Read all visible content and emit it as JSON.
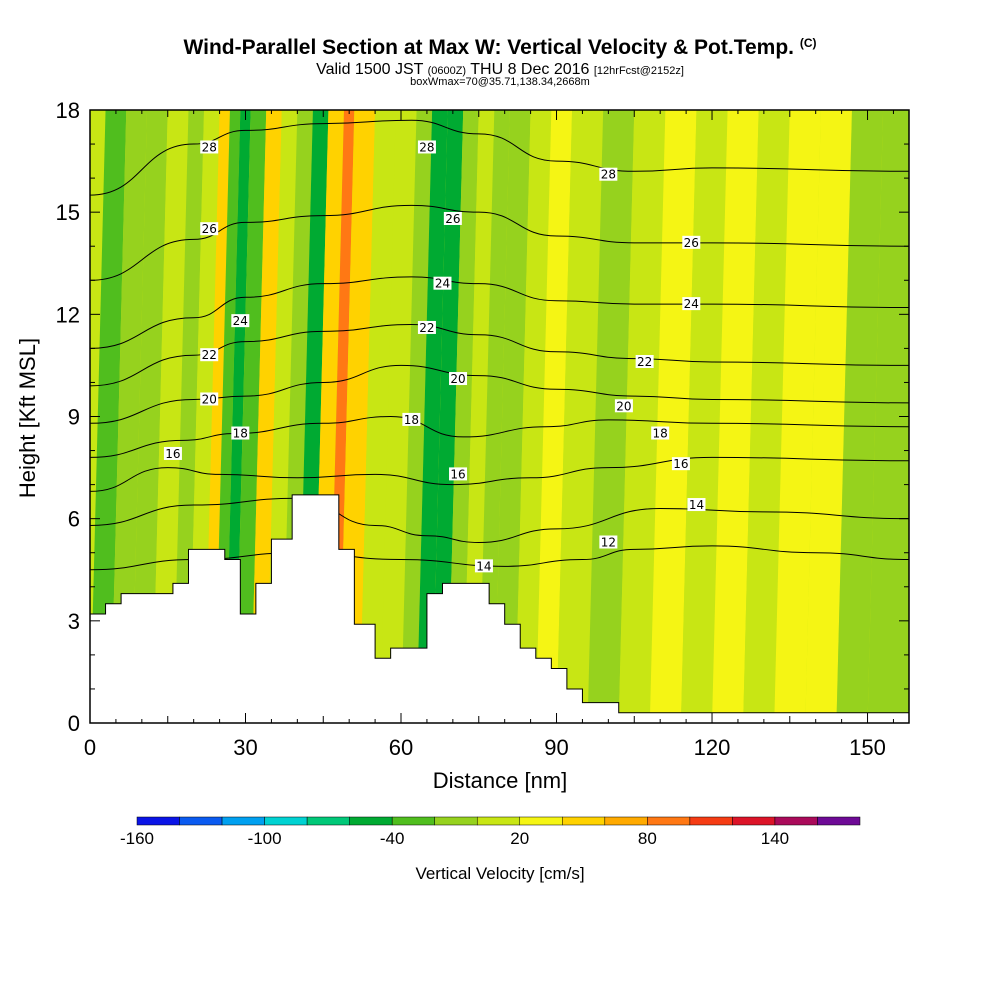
{
  "title": {
    "main": "Wind-Parallel Section at Max W: Vertical Velocity & Pot.Temp.",
    "main_suffix": "(C)",
    "valid_pre": "Valid 1500 JST",
    "valid_z": "(0600Z)",
    "valid_post": "THU 8 Dec 2016",
    "fcst": "[12hrFcst@2152z]",
    "box": "boxWmax=70@35.71,138.34,2668m"
  },
  "chart_data": {
    "type": "heatmap",
    "xlabel": "Distance [nm]",
    "ylabel": "Height [Kft MSL]",
    "xlim": [
      0,
      158
    ],
    "ylim": [
      0,
      18
    ],
    "x_ticks": [
      0,
      30,
      60,
      90,
      120,
      150
    ],
    "y_ticks": [
      0,
      3,
      6,
      9,
      12,
      15,
      18
    ],
    "colorbar": {
      "title": "Vertical Velocity [cm/s]",
      "labels": [
        -160,
        -100,
        -40,
        20,
        80,
        140
      ],
      "bins": [
        -160,
        -140,
        -120,
        -100,
        -80,
        -60,
        -40,
        -20,
        0,
        20,
        40,
        60,
        80,
        100,
        120,
        140,
        160
      ],
      "colors": [
        "#0a14e6",
        "#0a5af0",
        "#00a0f0",
        "#00d2d2",
        "#00c878",
        "#00aa32",
        "#50be1e",
        "#96d21e",
        "#c8e614",
        "#f5f514",
        "#ffd200",
        "#ffaa00",
        "#ff7814",
        "#f53c14",
        "#dc1428",
        "#aa0a5a",
        "#6e0a96"
      ]
    },
    "terrain": [
      [
        0,
        3.2
      ],
      [
        3,
        3.2
      ],
      [
        3,
        3.5
      ],
      [
        6,
        3.5
      ],
      [
        6,
        3.8
      ],
      [
        16,
        3.8
      ],
      [
        16,
        4.1
      ],
      [
        19,
        4.1
      ],
      [
        19,
        5.1
      ],
      [
        26,
        5.1
      ],
      [
        26,
        4.8
      ],
      [
        29,
        4.8
      ],
      [
        29,
        3.2
      ],
      [
        32,
        3.2
      ],
      [
        32,
        4.1
      ],
      [
        35,
        4.1
      ],
      [
        35,
        5.4
      ],
      [
        39,
        5.4
      ],
      [
        39,
        6.7
      ],
      [
        48,
        6.7
      ],
      [
        48,
        5.1
      ],
      [
        51,
        5.1
      ],
      [
        51,
        2.9
      ],
      [
        55,
        2.9
      ],
      [
        55,
        1.9
      ],
      [
        58,
        1.9
      ],
      [
        58,
        2.2
      ],
      [
        65,
        2.2
      ],
      [
        65,
        3.8
      ],
      [
        68,
        3.8
      ],
      [
        68,
        4.1
      ],
      [
        77,
        4.1
      ],
      [
        77,
        3.5
      ],
      [
        80,
        3.5
      ],
      [
        80,
        2.9
      ],
      [
        83,
        2.9
      ],
      [
        83,
        2.2
      ],
      [
        86,
        2.2
      ],
      [
        86,
        1.9
      ],
      [
        89,
        1.9
      ],
      [
        89,
        1.6
      ],
      [
        92,
        1.6
      ],
      [
        92,
        1.0
      ],
      [
        95,
        1.0
      ],
      [
        95,
        0.6
      ],
      [
        102,
        0.6
      ],
      [
        102,
        0.3
      ],
      [
        158,
        0.3
      ]
    ],
    "w_field": [
      {
        "x": 0,
        "w": -30
      },
      {
        "x": 4,
        "w": -15
      },
      {
        "x": 8,
        "w": -5
      },
      {
        "x": 12,
        "w": 5
      },
      {
        "x": 16,
        "w": -5
      },
      {
        "x": 19,
        "w": 10
      },
      {
        "x": 22,
        "w": 40
      },
      {
        "x": 24,
        "w": -30
      },
      {
        "x": 26,
        "w": -50
      },
      {
        "x": 28,
        "w": -30
      },
      {
        "x": 31,
        "w": 40
      },
      {
        "x": 34,
        "w": 15
      },
      {
        "x": 37,
        "w": -20
      },
      {
        "x": 40,
        "w": -55
      },
      {
        "x": 43,
        "w": 40
      },
      {
        "x": 46,
        "w": 85
      },
      {
        "x": 48,
        "w": 50
      },
      {
        "x": 52,
        "w": 15
      },
      {
        "x": 56,
        "w": 5
      },
      {
        "x": 60,
        "w": -20
      },
      {
        "x": 63,
        "w": -50
      },
      {
        "x": 66,
        "w": -45
      },
      {
        "x": 69,
        "w": -15
      },
      {
        "x": 72,
        "w": 15
      },
      {
        "x": 75,
        "w": -20
      },
      {
        "x": 78,
        "w": -10
      },
      {
        "x": 82,
        "w": 10
      },
      {
        "x": 86,
        "w": 20
      },
      {
        "x": 90,
        "w": 15
      },
      {
        "x": 96,
        "w": -10
      },
      {
        "x": 102,
        "w": 5
      },
      {
        "x": 108,
        "w": 20
      },
      {
        "x": 114,
        "w": 10
      },
      {
        "x": 120,
        "w": 25
      },
      {
        "x": 126,
        "w": 15
      },
      {
        "x": 132,
        "w": 35
      },
      {
        "x": 138,
        "w": 20
      },
      {
        "x": 144,
        "w": -10
      },
      {
        "x": 150,
        "w": -20
      },
      {
        "x": 158,
        "w": -25
      }
    ],
    "isentropes": [
      {
        "theta": 12,
        "pts": [
          [
            0,
            4.5
          ],
          [
            20,
            4.8
          ],
          [
            40,
            5.0
          ],
          [
            60,
            4.8
          ],
          [
            80,
            4.6
          ],
          [
            95,
            4.8
          ],
          [
            105,
            5.1
          ],
          [
            120,
            5.2
          ],
          [
            140,
            5.0
          ],
          [
            158,
            4.8
          ]
        ]
      },
      {
        "theta": 14,
        "pts": [
          [
            0,
            5.8
          ],
          [
            20,
            6.4
          ],
          [
            40,
            6.6
          ],
          [
            55,
            5.8
          ],
          [
            65,
            5.5
          ],
          [
            75,
            5.3
          ],
          [
            90,
            5.7
          ],
          [
            110,
            6.3
          ],
          [
            130,
            6.2
          ],
          [
            158,
            6.0
          ]
        ]
      },
      {
        "theta": 16,
        "pts": [
          [
            0,
            6.8
          ],
          [
            15,
            7.5
          ],
          [
            25,
            7.3
          ],
          [
            40,
            7.2
          ],
          [
            55,
            7.3
          ],
          [
            70,
            7.0
          ],
          [
            85,
            7.2
          ],
          [
            100,
            7.5
          ],
          [
            120,
            7.8
          ],
          [
            158,
            7.7
          ]
        ]
      },
      {
        "theta": 18,
        "pts": [
          [
            0,
            7.8
          ],
          [
            18,
            8.3
          ],
          [
            28,
            8.5
          ],
          [
            45,
            8.8
          ],
          [
            58,
            9.0
          ],
          [
            72,
            8.4
          ],
          [
            88,
            8.7
          ],
          [
            100,
            8.9
          ],
          [
            120,
            8.8
          ],
          [
            158,
            8.7
          ]
        ]
      },
      {
        "theta": 20,
        "pts": [
          [
            0,
            8.8
          ],
          [
            20,
            9.5
          ],
          [
            30,
            9.6
          ],
          [
            45,
            10.0
          ],
          [
            60,
            10.5
          ],
          [
            75,
            10.2
          ],
          [
            90,
            9.8
          ],
          [
            105,
            9.6
          ],
          [
            120,
            9.5
          ],
          [
            158,
            9.4
          ]
        ]
      },
      {
        "theta": 22,
        "pts": [
          [
            0,
            9.9
          ],
          [
            20,
            10.8
          ],
          [
            30,
            11.2
          ],
          [
            45,
            11.5
          ],
          [
            62,
            11.7
          ],
          [
            75,
            11.4
          ],
          [
            90,
            10.9
          ],
          [
            105,
            10.7
          ],
          [
            120,
            10.6
          ],
          [
            158,
            10.5
          ]
        ]
      },
      {
        "theta": 24,
        "pts": [
          [
            0,
            11.0
          ],
          [
            20,
            11.9
          ],
          [
            30,
            12.5
          ],
          [
            45,
            12.9
          ],
          [
            62,
            13.1
          ],
          [
            75,
            12.9
          ],
          [
            90,
            12.4
          ],
          [
            105,
            12.3
          ],
          [
            120,
            12.3
          ],
          [
            158,
            12.2
          ]
        ]
      },
      {
        "theta": 26,
        "pts": [
          [
            0,
            13.0
          ],
          [
            20,
            14.2
          ],
          [
            30,
            14.7
          ],
          [
            45,
            14.9
          ],
          [
            62,
            15.2
          ],
          [
            75,
            15.0
          ],
          [
            90,
            14.3
          ],
          [
            105,
            14.1
          ],
          [
            120,
            14.1
          ],
          [
            158,
            14.0
          ]
        ]
      },
      {
        "theta": 28,
        "pts": [
          [
            0,
            15.5
          ],
          [
            20,
            17.0
          ],
          [
            30,
            17.4
          ],
          [
            45,
            17.6
          ],
          [
            62,
            17.7
          ],
          [
            75,
            17.3
          ],
          [
            90,
            16.5
          ],
          [
            105,
            16.2
          ],
          [
            120,
            16.3
          ],
          [
            158,
            16.2
          ]
        ]
      }
    ],
    "contour_labels": [
      {
        "text": "28",
        "x": 23,
        "y": 16.9
      },
      {
        "text": "28",
        "x": 65,
        "y": 16.9
      },
      {
        "text": "28",
        "x": 100,
        "y": 16.1
      },
      {
        "text": "26",
        "x": 23,
        "y": 14.5
      },
      {
        "text": "26",
        "x": 70,
        "y": 14.8
      },
      {
        "text": "26",
        "x": 116,
        "y": 14.1
      },
      {
        "text": "24",
        "x": 29,
        "y": 11.8
      },
      {
        "text": "24",
        "x": 68,
        "y": 12.9
      },
      {
        "text": "24",
        "x": 116,
        "y": 12.3
      },
      {
        "text": "22",
        "x": 23,
        "y": 10.8
      },
      {
        "text": "22",
        "x": 65,
        "y": 11.6
      },
      {
        "text": "22",
        "x": 107,
        "y": 10.6
      },
      {
        "text": "20",
        "x": 23,
        "y": 9.5
      },
      {
        "text": "20",
        "x": 71,
        "y": 10.1
      },
      {
        "text": "20",
        "x": 103,
        "y": 9.3
      },
      {
        "text": "18",
        "x": 29,
        "y": 8.5
      },
      {
        "text": "18",
        "x": 62,
        "y": 8.9
      },
      {
        "text": "18",
        "x": 110,
        "y": 8.5
      },
      {
        "text": "16",
        "x": 16,
        "y": 7.9
      },
      {
        "text": "16",
        "x": 71,
        "y": 7.3
      },
      {
        "text": "16",
        "x": 114,
        "y": 7.6
      },
      {
        "text": "14",
        "x": 76,
        "y": 4.6
      },
      {
        "text": "14",
        "x": 117,
        "y": 6.4
      },
      {
        "text": "12",
        "x": 100,
        "y": 5.3
      }
    ]
  }
}
